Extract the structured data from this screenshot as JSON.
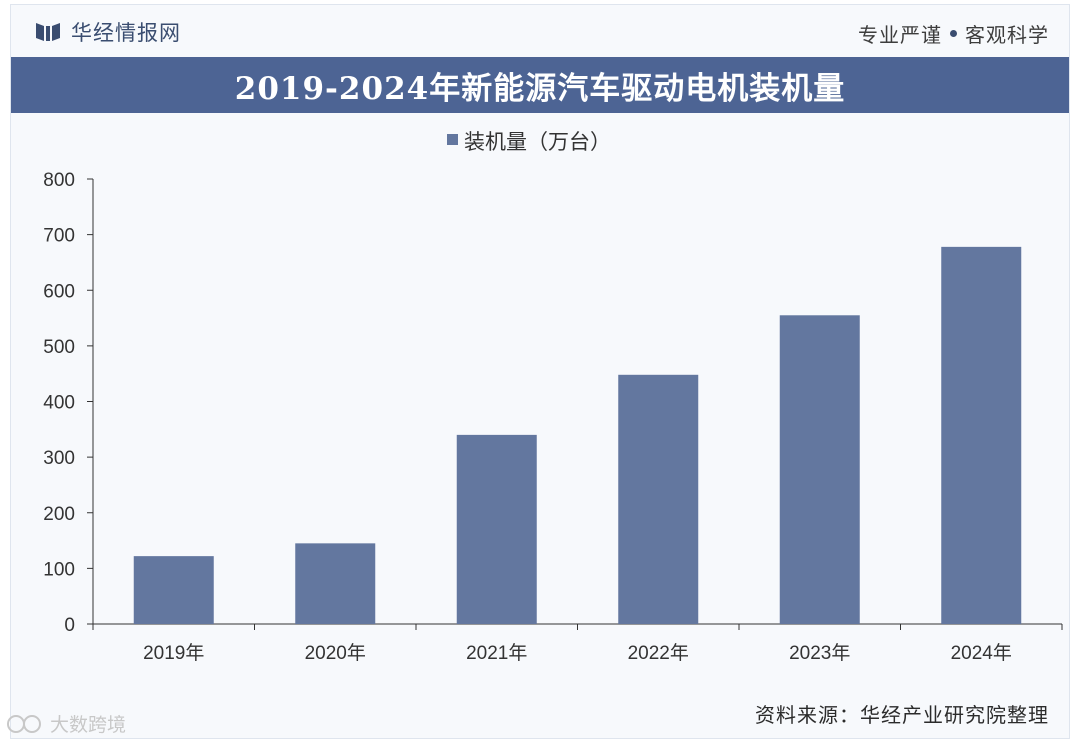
{
  "header": {
    "brand": "华经情报网",
    "slogan_left": "专业严谨",
    "slogan_right": "客观科学"
  },
  "footer": {
    "source": "资料来源：华经产业研究院整理",
    "platform_watermark": "大数跨境"
  },
  "colors": {
    "title_bar": "#4d6494",
    "bar": "#63779f",
    "axis": "#333333"
  },
  "chart_data": {
    "type": "bar",
    "title": "2019-2024年新能源汽车驱动电机装机量",
    "categories": [
      "2019年",
      "2020年",
      "2021年",
      "2022年",
      "2023年",
      "2024年"
    ],
    "series": [
      {
        "name": "装机量（万台）",
        "values": [
          122,
          145,
          340,
          448,
          555,
          678
        ]
      }
    ],
    "ylim": [
      0,
      800
    ],
    "yticks": [
      0,
      100,
      200,
      300,
      400,
      500,
      600,
      700,
      800
    ],
    "grid": false,
    "legend_position": "top-center",
    "xlabel": "",
    "ylabel": ""
  }
}
